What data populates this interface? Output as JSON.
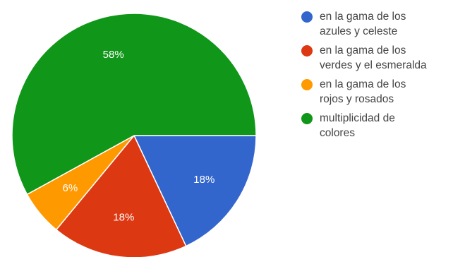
{
  "chart_data": {
    "type": "pie",
    "start_angle_deg": 0,
    "direction": "clockwise",
    "slices": [
      {
        "label_lines": [
          "en la gama de los",
          "azules y celeste"
        ],
        "value": 18,
        "display": "18%",
        "color": "#3366cc"
      },
      {
        "label_lines": [
          "en la gama de los",
          "verdes y el esmeralda"
        ],
        "value": 18,
        "display": "18%",
        "color": "#dc3912"
      },
      {
        "label_lines": [
          "en la gama de los",
          "rojos y rosados"
        ],
        "value": 6,
        "display": "6%",
        "color": "#ff9900"
      },
      {
        "label_lines": [
          "multiplicidad de",
          "colores"
        ],
        "value": 58,
        "display": "58%",
        "color": "#109618"
      }
    ],
    "legend_position": "right"
  }
}
